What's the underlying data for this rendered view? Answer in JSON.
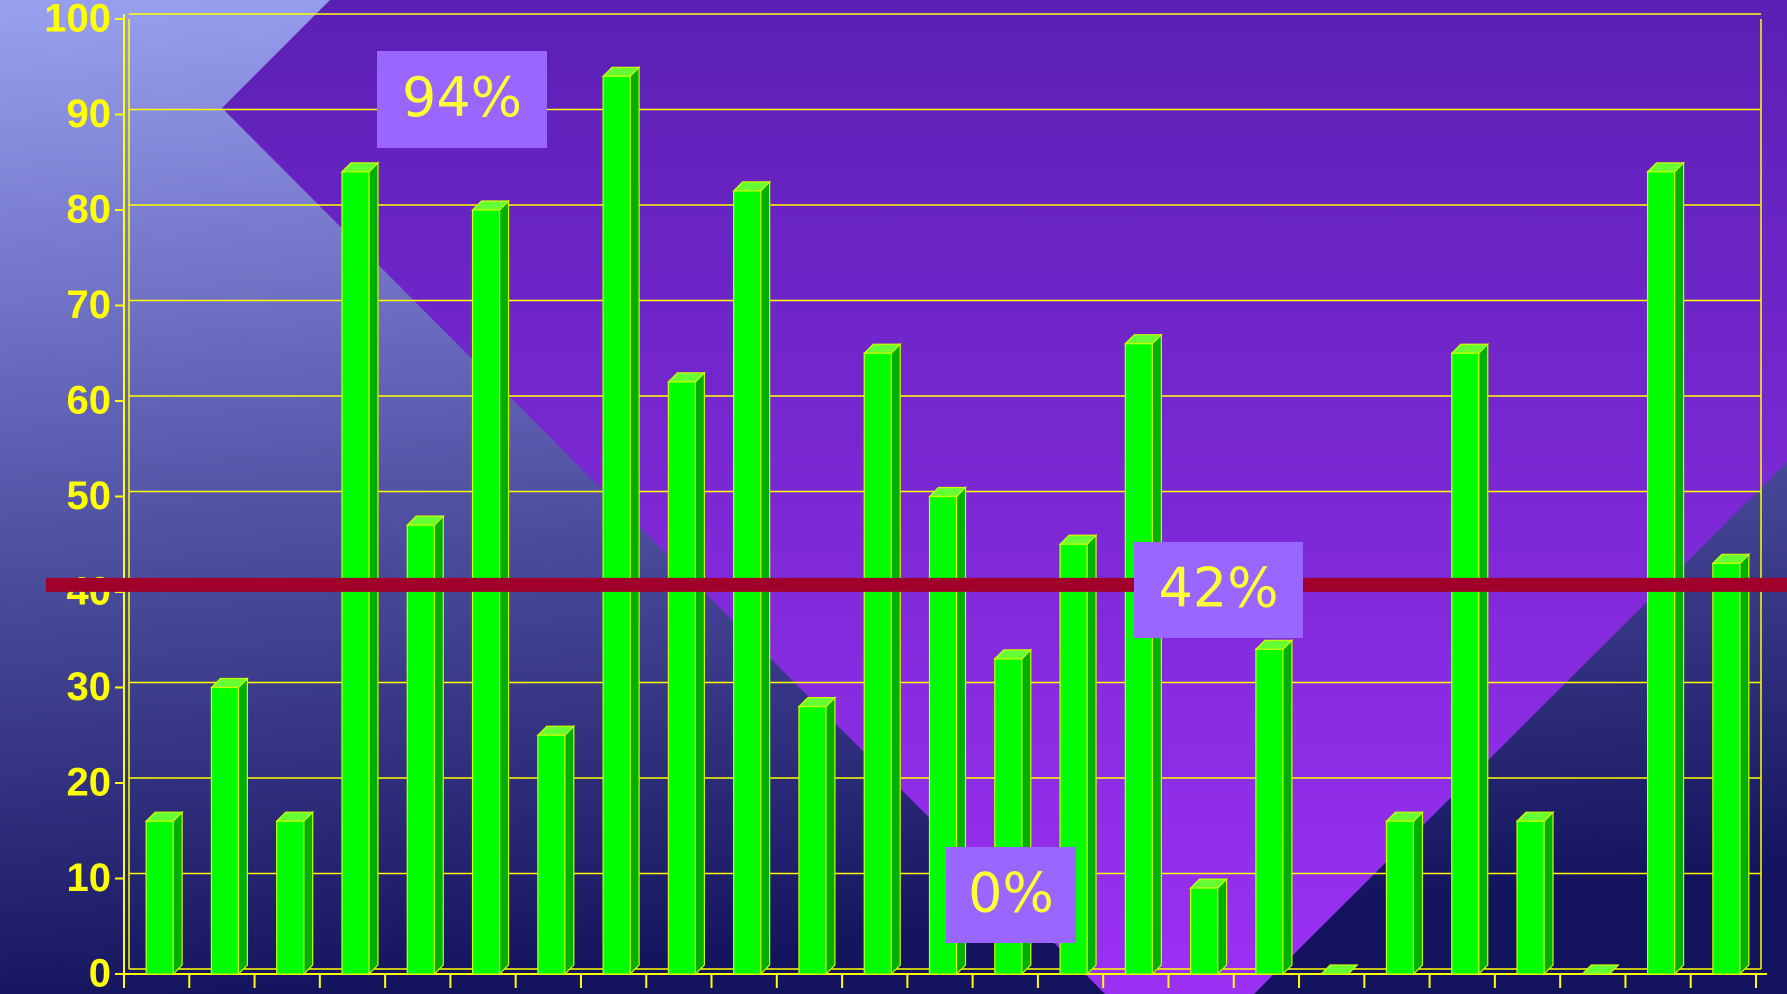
{
  "chart_data": {
    "type": "bar",
    "values": [
      16,
      30,
      16,
      84,
      47,
      80,
      25,
      94,
      62,
      82,
      28,
      65,
      50,
      33,
      45,
      66,
      9,
      34,
      0,
      16,
      65,
      16,
      0,
      84,
      43
    ],
    "color": "#00ff00",
    "ylim": [
      0,
      100
    ],
    "yticks": [
      0,
      10,
      20,
      30,
      40,
      50,
      60,
      70,
      80,
      90,
      100
    ],
    "grid": true,
    "reference_line": {
      "value": 42,
      "color": "#a0002a"
    },
    "annotations": [
      {
        "value": 94,
        "label": "94%"
      },
      {
        "value": 42,
        "label": "42%"
      },
      {
        "value": 0,
        "label": "0%"
      }
    ]
  }
}
